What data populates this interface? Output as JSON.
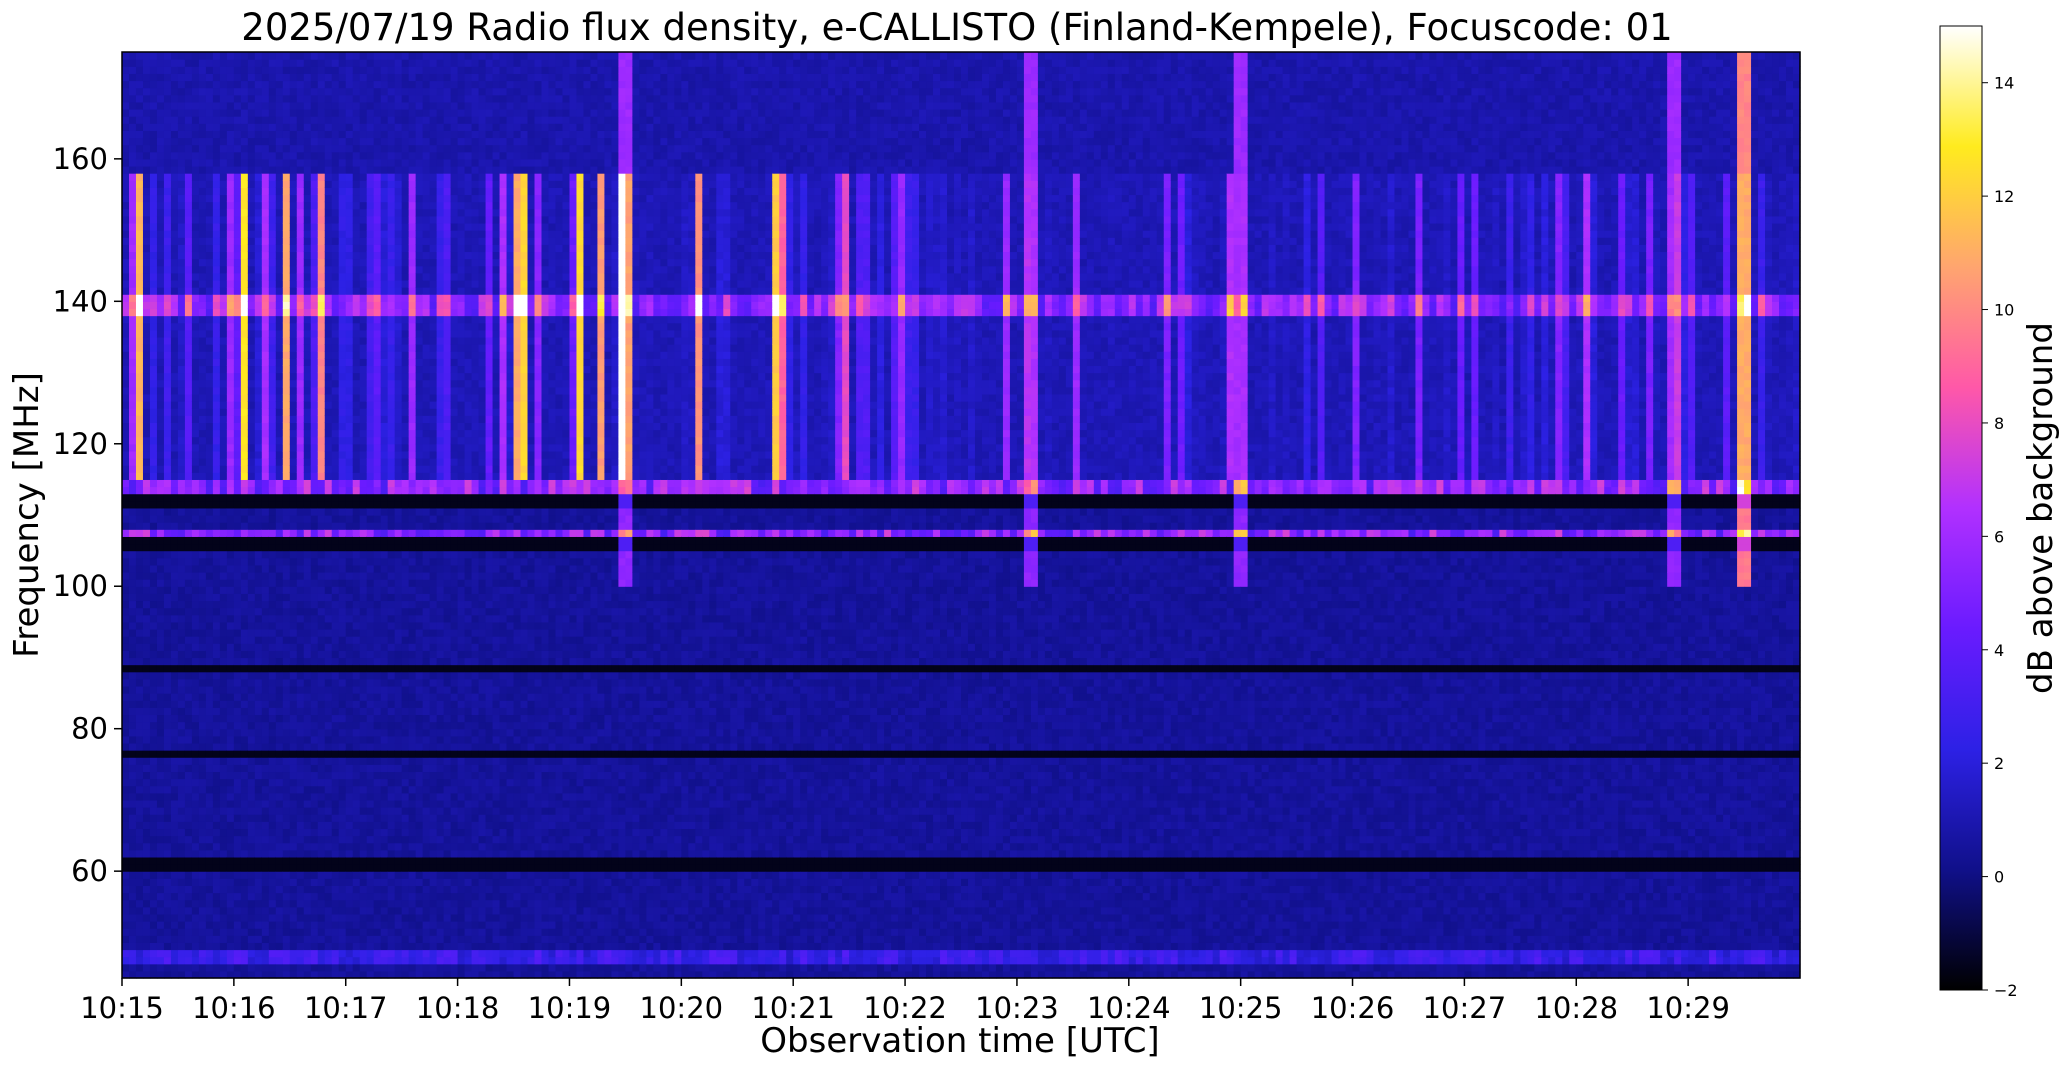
{
  "chart_data": {
    "type": "heatmap",
    "title": "2025/07/19  Radio flux density, e-CALLISTO (Finland-Kempele), Focuscode: 01",
    "xlabel": "Observation time [UTC]",
    "ylabel": "Frequency [MHz]",
    "colorbar_label": "dB above background",
    "colormap": "gnuplot2",
    "x_ticks": [
      "10:15",
      "10:16",
      "10:17",
      "10:18",
      "10:19",
      "10:20",
      "10:21",
      "10:22",
      "10:23",
      "10:24",
      "10:25",
      "10:26",
      "10:27",
      "10:28",
      "10:29"
    ],
    "x_range_minutes": [
      0,
      15
    ],
    "y_ticks": [
      "60",
      "80",
      "100",
      "120",
      "140",
      "160"
    ],
    "y_range": [
      45,
      175
    ],
    "colorbar_ticks": [
      "−2",
      "0",
      "2",
      "4",
      "6",
      "8",
      "10",
      "12",
      "14"
    ],
    "colorbar_range": [
      -2,
      15
    ],
    "colorbar_stops": [
      "#000000",
      "#10108a",
      "#2d21e6",
      "#6a1bff",
      "#b130ff",
      "#ff58a8",
      "#ffa56f",
      "#ffeb1e",
      "#ffffff"
    ],
    "features": {
      "persistent_bands_mhz": [
        139.5,
        113.5,
        107,
        48
      ],
      "dark_gap_bands_mhz": [
        112,
        106,
        88.5,
        76.5,
        61
      ],
      "bright_burst_minutes": [
        4.5,
        8.1,
        10.0,
        13.9
      ],
      "strong_event_minute": 14.5
    }
  }
}
